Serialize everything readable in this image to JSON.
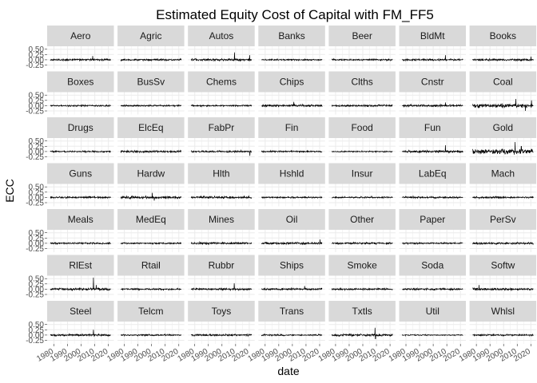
{
  "chart_data": {
    "type": "line",
    "title": "Estimated Equity Cost of Capital with FM_FF5",
    "xlabel": "date",
    "ylabel": "ECC",
    "facet_layout": {
      "columns": 7,
      "rows": 7
    },
    "x_range": [
      1975,
      2024
    ],
    "x_ticks": [
      1980,
      1990,
      2000,
      2010,
      2020
    ],
    "x_tick_labels": [
      "1980",
      "1990",
      "2000",
      "2010",
      "2020"
    ],
    "y_range": [
      -0.42,
      0.64
    ],
    "y_ticks": [
      -0.25,
      0.0,
      0.25,
      0.5
    ],
    "y_tick_labels": [
      "-0.25",
      "0.00",
      "0.25",
      "0.50"
    ],
    "grid": true,
    "line_color": "#000000",
    "panel_background": "#ffffff",
    "grid_color": "#ebebeb",
    "strip_background": "#d9d9d9",
    "panels": [
      {
        "name": "Aero",
        "volatility": 0.05,
        "spikes": [
          {
            "year": 2008.5,
            "value": 0.18
          }
        ]
      },
      {
        "name": "Agric",
        "volatility": 0.05,
        "spikes": []
      },
      {
        "name": "Autos",
        "volatility": 0.06,
        "spikes": [
          {
            "year": 2009.2,
            "value": 0.35
          },
          {
            "year": 2020.3,
            "value": 0.22
          }
        ]
      },
      {
        "name": "Banks",
        "volatility": 0.04,
        "spikes": []
      },
      {
        "name": "Beer",
        "volatility": 0.04,
        "spikes": []
      },
      {
        "name": "BldMt",
        "volatility": 0.05,
        "spikes": [
          {
            "year": 2009.0,
            "value": 0.22
          }
        ]
      },
      {
        "name": "Books",
        "volatility": 0.05,
        "spikes": [
          {
            "year": 2020.2,
            "value": 0.15
          }
        ]
      },
      {
        "name": "Boxes",
        "volatility": 0.04,
        "spikes": []
      },
      {
        "name": "BusSv",
        "volatility": 0.04,
        "spikes": []
      },
      {
        "name": "Chems",
        "volatility": 0.04,
        "spikes": []
      },
      {
        "name": "Chips",
        "volatility": 0.06,
        "spikes": [
          {
            "year": 2001.0,
            "value": 0.18
          }
        ]
      },
      {
        "name": "Clths",
        "volatility": 0.05,
        "spikes": []
      },
      {
        "name": "Cnstr",
        "volatility": 0.06,
        "spikes": [
          {
            "year": 2009.0,
            "value": 0.15
          }
        ]
      },
      {
        "name": "Coal",
        "volatility": 0.1,
        "spikes": [
          {
            "year": 2009.0,
            "value": 0.32
          },
          {
            "year": 2016.0,
            "value": -0.25
          },
          {
            "year": 2020.5,
            "value": 0.25
          }
        ]
      },
      {
        "name": "Drugs",
        "volatility": 0.04,
        "spikes": []
      },
      {
        "name": "ElcEq",
        "volatility": 0.05,
        "spikes": []
      },
      {
        "name": "FabPr",
        "volatility": 0.05,
        "spikes": [
          {
            "year": 2020.5,
            "value": -0.2
          }
        ]
      },
      {
        "name": "Fin",
        "volatility": 0.04,
        "spikes": []
      },
      {
        "name": "Food",
        "volatility": 0.03,
        "spikes": []
      },
      {
        "name": "Fun",
        "volatility": 0.06,
        "spikes": [
          {
            "year": 2009.0,
            "value": 0.3
          }
        ]
      },
      {
        "name": "Gold",
        "volatility": 0.13,
        "spikes": [
          {
            "year": 2008.5,
            "value": 0.45
          },
          {
            "year": 2013.0,
            "value": 0.25
          }
        ]
      },
      {
        "name": "Guns",
        "volatility": 0.05,
        "spikes": []
      },
      {
        "name": "Hardw",
        "volatility": 0.07,
        "spikes": [
          {
            "year": 2000.5,
            "value": 0.22
          },
          {
            "year": 2002.0,
            "value": -0.15
          }
        ]
      },
      {
        "name": "Hlth",
        "volatility": 0.06,
        "spikes": []
      },
      {
        "name": "Hshld",
        "volatility": 0.04,
        "spikes": []
      },
      {
        "name": "Insur",
        "volatility": 0.04,
        "spikes": []
      },
      {
        "name": "LabEq",
        "volatility": 0.05,
        "spikes": []
      },
      {
        "name": "Mach",
        "volatility": 0.05,
        "spikes": []
      },
      {
        "name": "Meals",
        "volatility": 0.04,
        "spikes": []
      },
      {
        "name": "MedEq",
        "volatility": 0.04,
        "spikes": []
      },
      {
        "name": "Mines",
        "volatility": 0.06,
        "spikes": []
      },
      {
        "name": "Oil",
        "volatility": 0.06,
        "spikes": [
          {
            "year": 2020.3,
            "value": 0.18
          }
        ]
      },
      {
        "name": "Other",
        "volatility": 0.05,
        "spikes": []
      },
      {
        "name": "Paper",
        "volatility": 0.04,
        "spikes": []
      },
      {
        "name": "PerSv",
        "volatility": 0.05,
        "spikes": []
      },
      {
        "name": "RlEst",
        "volatility": 0.07,
        "spikes": [
          {
            "year": 2009.0,
            "value": 0.55
          },
          {
            "year": 2011.0,
            "value": 0.2
          }
        ]
      },
      {
        "name": "Rtail",
        "volatility": 0.04,
        "spikes": []
      },
      {
        "name": "Rubbr",
        "volatility": 0.05,
        "spikes": [
          {
            "year": 2009.0,
            "value": 0.28
          }
        ]
      },
      {
        "name": "Ships",
        "volatility": 0.05,
        "spikes": [
          {
            "year": 2009.0,
            "value": 0.15
          }
        ]
      },
      {
        "name": "Smoke",
        "volatility": 0.05,
        "spikes": []
      },
      {
        "name": "Soda",
        "volatility": 0.05,
        "spikes": []
      },
      {
        "name": "Softw",
        "volatility": 0.06,
        "spikes": [
          {
            "year": 1982.0,
            "value": 0.2
          }
        ]
      },
      {
        "name": "Steel",
        "volatility": 0.06,
        "spikes": [
          {
            "year": 2009.0,
            "value": 0.25
          }
        ]
      },
      {
        "name": "Telcm",
        "volatility": 0.04,
        "spikes": []
      },
      {
        "name": "Toys",
        "volatility": 0.05,
        "spikes": []
      },
      {
        "name": "Trans",
        "volatility": 0.04,
        "spikes": []
      },
      {
        "name": "Txtls",
        "volatility": 0.06,
        "spikes": [
          {
            "year": 2009.0,
            "value": 0.35
          },
          {
            "year": 2009.3,
            "value": -0.18
          }
        ]
      },
      {
        "name": "Util",
        "volatility": 0.03,
        "spikes": []
      },
      {
        "name": "Whlsl",
        "volatility": 0.04,
        "spikes": []
      }
    ]
  }
}
